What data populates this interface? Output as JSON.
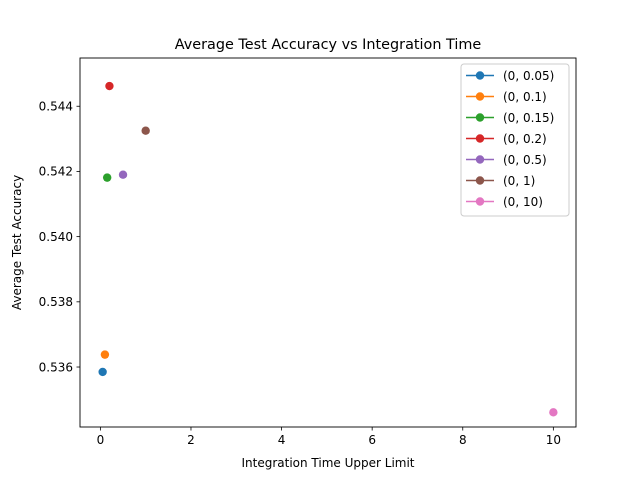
{
  "chart_data": {
    "type": "scatter",
    "title": "Average Test Accuracy vs Integration Time",
    "xlabel": "Integration Time Upper Limit",
    "ylabel": "Average Test Accuracy",
    "xlim": [
      -0.45,
      10.5
    ],
    "ylim": [
      0.53416,
      0.54548
    ],
    "xticks": [
      0,
      2,
      4,
      6,
      8,
      10
    ],
    "yticks": [
      0.536,
      0.538,
      0.54,
      0.542,
      0.544
    ],
    "xtick_labels": [
      "0",
      "2",
      "4",
      "6",
      "8",
      "10"
    ],
    "ytick_labels": [
      "0.536",
      "0.538",
      "0.540",
      "0.542",
      "0.544"
    ],
    "grid": false,
    "legend_position": "upper right",
    "series": [
      {
        "name": "(0, 0.05)",
        "color": "#1f77b4",
        "x": [
          0.05
        ],
        "y": [
          0.53585
        ]
      },
      {
        "name": "(0, 0.1)",
        "color": "#ff7f0e",
        "x": [
          0.1
        ],
        "y": [
          0.53638
        ]
      },
      {
        "name": "(0, 0.15)",
        "color": "#2ca02c",
        "x": [
          0.15
        ],
        "y": [
          0.54181
        ]
      },
      {
        "name": "(0, 0.2)",
        "color": "#d62728",
        "x": [
          0.2
        ],
        "y": [
          0.54462
        ]
      },
      {
        "name": "(0, 0.5)",
        "color": "#9467bd",
        "x": [
          0.5
        ],
        "y": [
          0.5419
        ]
      },
      {
        "name": "(0, 1)",
        "color": "#8c564b",
        "x": [
          1
        ],
        "y": [
          0.54325
        ]
      },
      {
        "name": "(0, 10)",
        "color": "#e377c2",
        "x": [
          10
        ],
        "y": [
          0.53461
        ]
      }
    ]
  }
}
